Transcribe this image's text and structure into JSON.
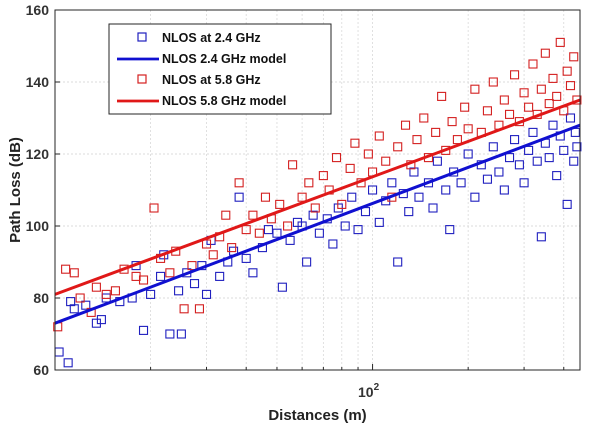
{
  "chart_data": {
    "type": "scatter",
    "xlabel": "Distances (m)",
    "ylabel": "Path Loss (dB)",
    "xscale": "log",
    "xlim": [
      10,
      450
    ],
    "ylim": [
      60,
      160
    ],
    "y_ticks": [
      60,
      80,
      100,
      120,
      140,
      160
    ],
    "x_ticks": [
      {
        "value": 100,
        "base": "10",
        "exp": "2"
      }
    ],
    "grid": true,
    "legend_placement": "top-left",
    "series": [
      {
        "name": "NLOS at 2.4 GHz",
        "kind": "scatter",
        "marker": "square-open",
        "color": "#1f1fbf",
        "points": [
          [
            10.3,
            65
          ],
          [
            11.0,
            62
          ],
          [
            11.2,
            79
          ],
          [
            11.5,
            77
          ],
          [
            12.5,
            78
          ],
          [
            13.5,
            73
          ],
          [
            14.0,
            74
          ],
          [
            14.5,
            80
          ],
          [
            16.0,
            79
          ],
          [
            17.5,
            80
          ],
          [
            18.0,
            89
          ],
          [
            19.0,
            71
          ],
          [
            20.0,
            81
          ],
          [
            21.5,
            86
          ],
          [
            22.0,
            92
          ],
          [
            23.0,
            70
          ],
          [
            24.5,
            82
          ],
          [
            25.0,
            70
          ],
          [
            26.0,
            87
          ],
          [
            27.5,
            84
          ],
          [
            29.0,
            89
          ],
          [
            30.0,
            81
          ],
          [
            31.0,
            96
          ],
          [
            33.0,
            86
          ],
          [
            35.0,
            90
          ],
          [
            36.5,
            93
          ],
          [
            38.0,
            108
          ],
          [
            40.0,
            91
          ],
          [
            42.0,
            87
          ],
          [
            45.0,
            94
          ],
          [
            47.0,
            99
          ],
          [
            50.0,
            98
          ],
          [
            52.0,
            83
          ],
          [
            55.0,
            96
          ],
          [
            58.0,
            101
          ],
          [
            60.0,
            100
          ],
          [
            62.0,
            90
          ],
          [
            65.0,
            103
          ],
          [
            68.0,
            98
          ],
          [
            72.0,
            102
          ],
          [
            75.0,
            95
          ],
          [
            78.0,
            105
          ],
          [
            82.0,
            100
          ],
          [
            86.0,
            108
          ],
          [
            90.0,
            99
          ],
          [
            95.0,
            104
          ],
          [
            100.0,
            110
          ],
          [
            105.0,
            101
          ],
          [
            110.0,
            107
          ],
          [
            115.0,
            112
          ],
          [
            120.0,
            90
          ],
          [
            125.0,
            109
          ],
          [
            130.0,
            104
          ],
          [
            135.0,
            115
          ],
          [
            140.0,
            108
          ],
          [
            150.0,
            112
          ],
          [
            155.0,
            105
          ],
          [
            160.0,
            118
          ],
          [
            170.0,
            110
          ],
          [
            175.0,
            99
          ],
          [
            180.0,
            115
          ],
          [
            190.0,
            112
          ],
          [
            200.0,
            120
          ],
          [
            210.0,
            108
          ],
          [
            220.0,
            117
          ],
          [
            230.0,
            113
          ],
          [
            240.0,
            122
          ],
          [
            250.0,
            115
          ],
          [
            260.0,
            110
          ],
          [
            270.0,
            119
          ],
          [
            280.0,
            124
          ],
          [
            290.0,
            117
          ],
          [
            300.0,
            112
          ],
          [
            310.0,
            121
          ],
          [
            320.0,
            126
          ],
          [
            330.0,
            118
          ],
          [
            340.0,
            97
          ],
          [
            350.0,
            123
          ],
          [
            360.0,
            119
          ],
          [
            370.0,
            128
          ],
          [
            380.0,
            114
          ],
          [
            390.0,
            125
          ],
          [
            400.0,
            121
          ],
          [
            410.0,
            106
          ],
          [
            420.0,
            130
          ],
          [
            430.0,
            118
          ],
          [
            435.0,
            126
          ],
          [
            440.0,
            122
          ]
        ]
      },
      {
        "name": "NLOS 2.4 GHz model",
        "kind": "line",
        "color": "#1010d0",
        "x": [
          10,
          450
        ],
        "y": [
          73,
          128
        ]
      },
      {
        "name": "NLOS at 5.8 GHz",
        "kind": "scatter",
        "marker": "square-open",
        "color": "#d42020",
        "points": [
          [
            10.2,
            72
          ],
          [
            10.8,
            88
          ],
          [
            11.5,
            87
          ],
          [
            12.0,
            80
          ],
          [
            13.0,
            76
          ],
          [
            13.5,
            83
          ],
          [
            14.5,
            81
          ],
          [
            15.5,
            82
          ],
          [
            16.5,
            88
          ],
          [
            18.0,
            86
          ],
          [
            19.0,
            85
          ],
          [
            20.5,
            105
          ],
          [
            21.5,
            91
          ],
          [
            23.0,
            87
          ],
          [
            24.0,
            93
          ],
          [
            25.5,
            77
          ],
          [
            27.0,
            89
          ],
          [
            28.5,
            77
          ],
          [
            30.0,
            95
          ],
          [
            31.5,
            92
          ],
          [
            33.0,
            97
          ],
          [
            34.5,
            103
          ],
          [
            36.0,
            94
          ],
          [
            38.0,
            112
          ],
          [
            40.0,
            99
          ],
          [
            42.0,
            103
          ],
          [
            44.0,
            98
          ],
          [
            46.0,
            108
          ],
          [
            48.0,
            102
          ],
          [
            51.0,
            106
          ],
          [
            54.0,
            100
          ],
          [
            56.0,
            117
          ],
          [
            60.0,
            108
          ],
          [
            63.0,
            112
          ],
          [
            66.0,
            105
          ],
          [
            70.0,
            114
          ],
          [
            73.0,
            110
          ],
          [
            77.0,
            119
          ],
          [
            80.0,
            106
          ],
          [
            85.0,
            116
          ],
          [
            88.0,
            123
          ],
          [
            92.0,
            112
          ],
          [
            97.0,
            120
          ],
          [
            100.0,
            115
          ],
          [
            105.0,
            125
          ],
          [
            110.0,
            118
          ],
          [
            115.0,
            108
          ],
          [
            120.0,
            122
          ],
          [
            127.0,
            128
          ],
          [
            132.0,
            117
          ],
          [
            138.0,
            124
          ],
          [
            145.0,
            130
          ],
          [
            150.0,
            119
          ],
          [
            158.0,
            126
          ],
          [
            165.0,
            136
          ],
          [
            170.0,
            121
          ],
          [
            178.0,
            129
          ],
          [
            185.0,
            124
          ],
          [
            195.0,
            133
          ],
          [
            200.0,
            127
          ],
          [
            210.0,
            138
          ],
          [
            220.0,
            126
          ],
          [
            230.0,
            132
          ],
          [
            240.0,
            140
          ],
          [
            250.0,
            128
          ],
          [
            260.0,
            135
          ],
          [
            270.0,
            131
          ],
          [
            280.0,
            142
          ],
          [
            290.0,
            129
          ],
          [
            300.0,
            137
          ],
          [
            310.0,
            133
          ],
          [
            320.0,
            145
          ],
          [
            330.0,
            131
          ],
          [
            340.0,
            138
          ],
          [
            350.0,
            148
          ],
          [
            360.0,
            134
          ],
          [
            370.0,
            141
          ],
          [
            380.0,
            136
          ],
          [
            390.0,
            151
          ],
          [
            400.0,
            132
          ],
          [
            410.0,
            143
          ],
          [
            420.0,
            139
          ],
          [
            430.0,
            147
          ],
          [
            440.0,
            135
          ]
        ]
      },
      {
        "name": "NLOS 5.8 GHz model",
        "kind": "line",
        "color": "#e01818",
        "x": [
          10,
          450
        ],
        "y": [
          81,
          135
        ]
      }
    ]
  }
}
